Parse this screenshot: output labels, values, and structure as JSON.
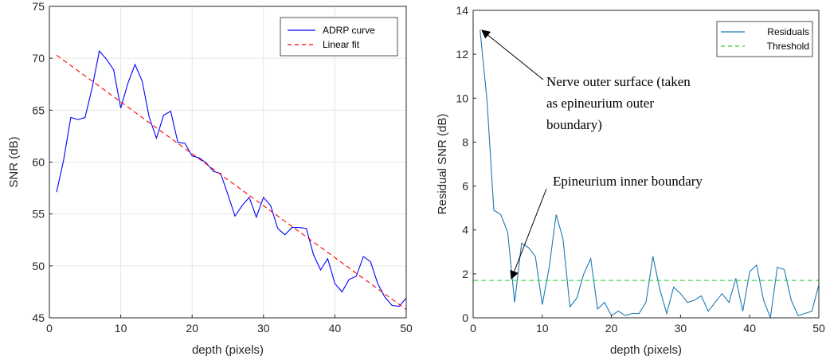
{
  "chart_data": [
    {
      "type": "line",
      "xlabel": "depth (pixels)",
      "ylabel": "SNR (dB)",
      "xlim": [
        0,
        50
      ],
      "ylim": [
        45,
        75
      ],
      "xticks": [
        "0",
        "10",
        "20",
        "30",
        "40",
        "50"
      ],
      "yticks": [
        "45",
        "50",
        "55",
        "60",
        "65",
        "70",
        "75"
      ],
      "grid": true,
      "legend_position": "top-right",
      "series": [
        {
          "name": "ADRP curve",
          "color": "#0000ff",
          "style": "solid",
          "x": [
            1,
            2,
            3,
            4,
            5,
            6,
            7,
            8,
            9,
            10,
            11,
            12,
            13,
            14,
            15,
            16,
            17,
            18,
            19,
            20,
            21,
            22,
            23,
            24,
            25,
            26,
            27,
            28,
            29,
            30,
            31,
            32,
            33,
            34,
            35,
            36,
            37,
            38,
            39,
            40,
            41,
            42,
            43,
            44,
            45,
            46,
            47,
            48,
            49,
            50
          ],
          "y": [
            57.1,
            60.2,
            64.3,
            64.1,
            64.3,
            67.2,
            70.7,
            69.9,
            68.9,
            65.2,
            67.6,
            69.4,
            67.8,
            64.3,
            62.3,
            64.5,
            64.9,
            61.9,
            61.8,
            60.6,
            60.4,
            59.9,
            59.1,
            58.9,
            56.9,
            54.8,
            55.8,
            56.6,
            54.7,
            56.6,
            55.8,
            53.6,
            53.0,
            53.7,
            53.7,
            53.6,
            51.1,
            49.6,
            50.7,
            48.3,
            47.5,
            48.7,
            49.0,
            50.9,
            50.4,
            48.3,
            47.0,
            46.2,
            46.1,
            46.9
          ]
        },
        {
          "name": "Linear fit",
          "color": "#ff0000",
          "style": "dashed",
          "x": [
            1,
            50
          ],
          "y": [
            70.3,
            45.8
          ]
        }
      ]
    },
    {
      "type": "line",
      "xlabel": "depth (pixels)",
      "ylabel": "Residual SNR (dB)",
      "xlim": [
        0,
        50
      ],
      "ylim": [
        0,
        14
      ],
      "xticks": [
        "0",
        "10",
        "20",
        "30",
        "40",
        "50"
      ],
      "yticks": [
        "0",
        "2",
        "4",
        "6",
        "8",
        "10",
        "12",
        "14"
      ],
      "grid": false,
      "legend_position": "top-right",
      "series": [
        {
          "name": "Residuals",
          "color": "#1f77b4",
          "style": "solid",
          "x": [
            1,
            2,
            3,
            4,
            5,
            6,
            7,
            8,
            9,
            10,
            11,
            12,
            13,
            14,
            15,
            16,
            17,
            18,
            19,
            20,
            21,
            22,
            23,
            24,
            25,
            26,
            27,
            28,
            29,
            30,
            31,
            32,
            33,
            34,
            35,
            36,
            37,
            38,
            39,
            40,
            41,
            42,
            43,
            44,
            45,
            46,
            47,
            48,
            49,
            50
          ],
          "y": [
            13.1,
            9.9,
            4.9,
            4.7,
            3.9,
            0.7,
            3.4,
            3.2,
            2.8,
            0.6,
            2.3,
            4.7,
            3.6,
            0.5,
            0.9,
            2.0,
            2.7,
            0.4,
            0.7,
            0.1,
            0.3,
            0.1,
            0.2,
            0.2,
            0.7,
            2.8,
            1.3,
            0.2,
            1.4,
            1.1,
            0.7,
            0.8,
            1.0,
            0.3,
            0.7,
            1.1,
            0.7,
            1.8,
            0.3,
            2.1,
            2.4,
            0.8,
            0.0,
            2.3,
            2.2,
            0.8,
            0.1,
            0.2,
            0.3,
            1.5
          ]
        },
        {
          "name": "Threshold",
          "color": "#33cc33",
          "style": "dashed",
          "x": [
            0,
            50
          ],
          "y": [
            1.7,
            1.7
          ]
        }
      ],
      "annotations": [
        {
          "lines": [
            "Nerve outer surface (taken",
            "as epineurium outer",
            "boundary)"
          ],
          "point": [
            1,
            13.1
          ]
        },
        {
          "lines": [
            "Epineurium inner boundary"
          ],
          "point": [
            6,
            1.7
          ]
        }
      ]
    }
  ]
}
